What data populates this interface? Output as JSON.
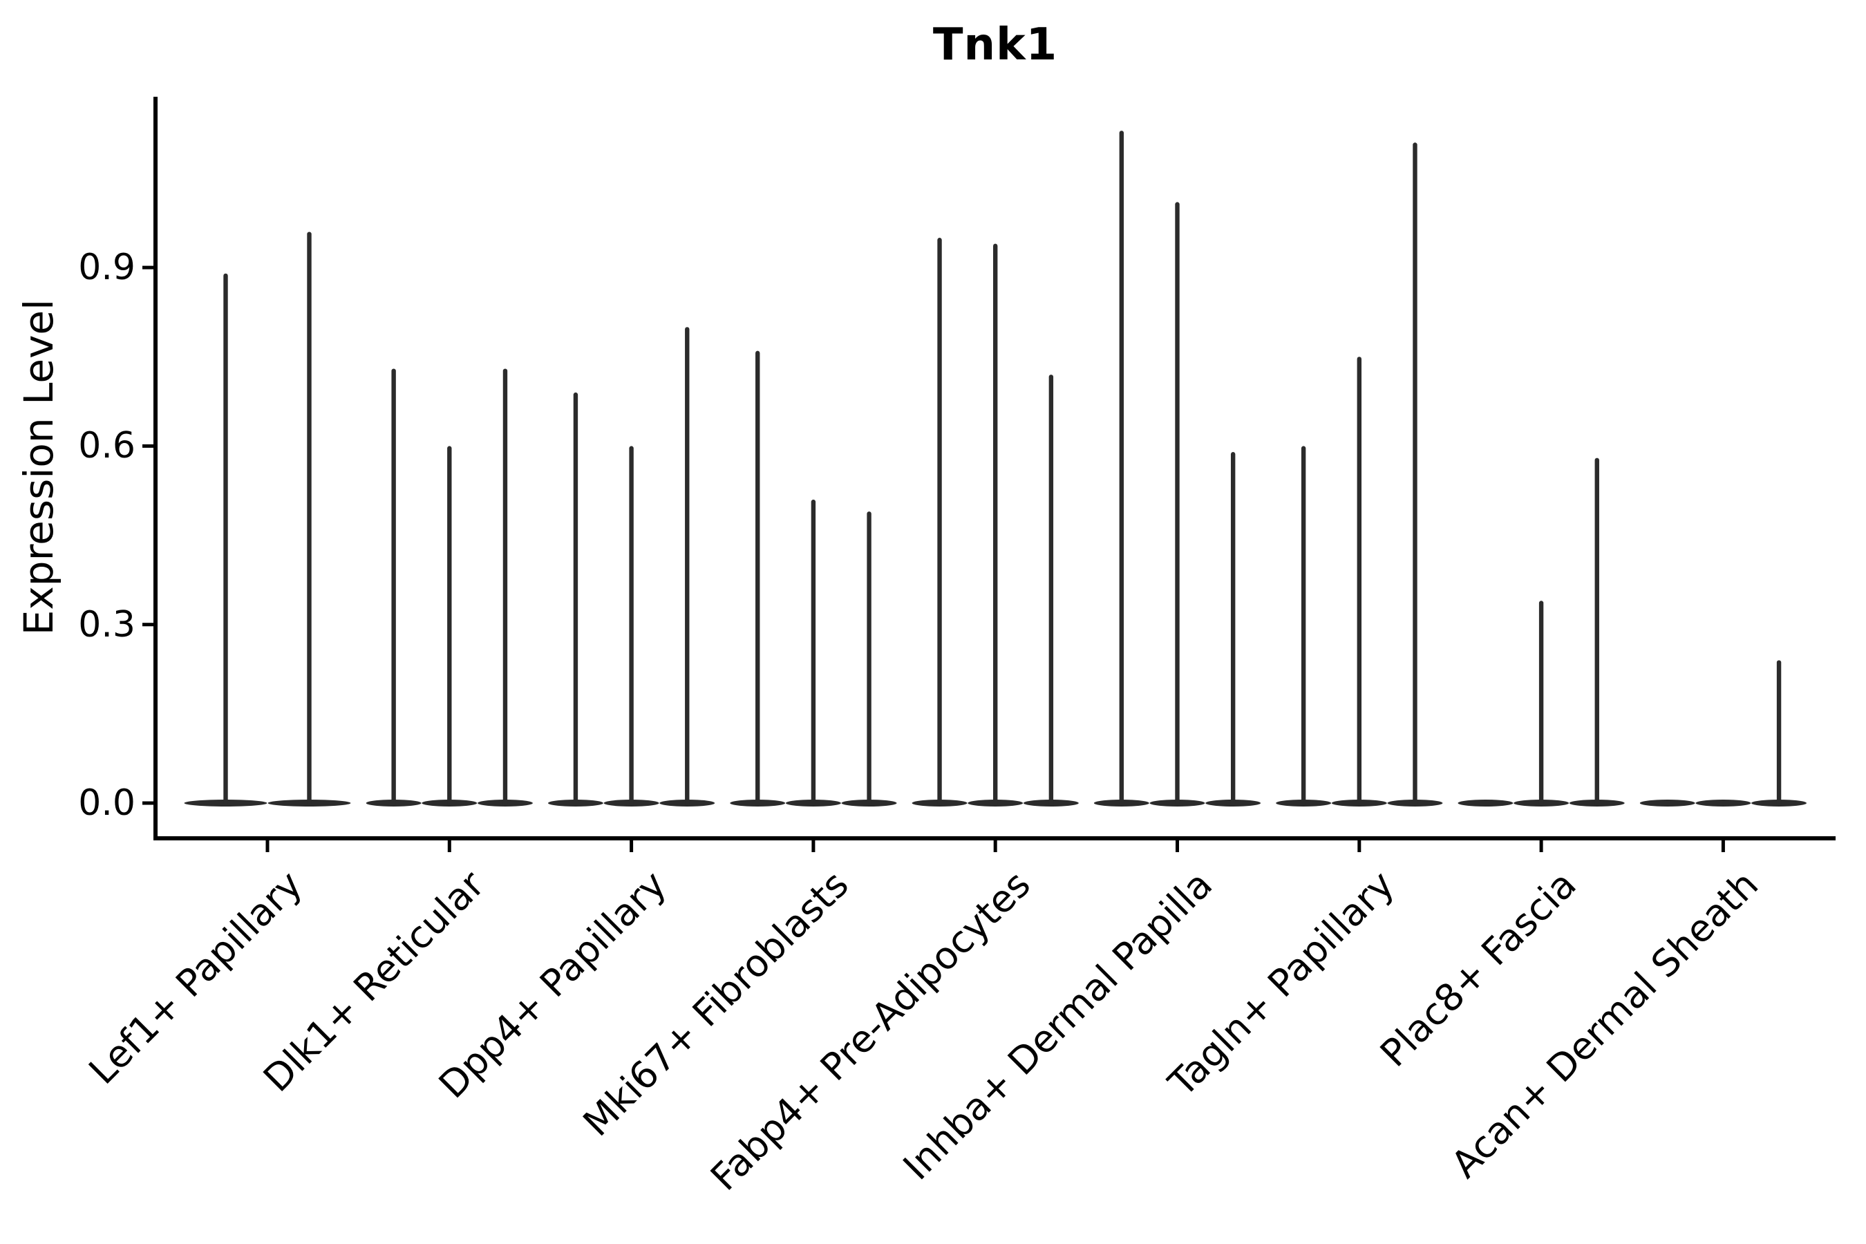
{
  "chart_data": {
    "type": "violin",
    "title": "Tnk1",
    "xlabel": "",
    "ylabel": "Expression Level",
    "y_ticks": [
      "0.0",
      "0.3",
      "0.6",
      "0.9"
    ],
    "y_tick_values": [
      0.0,
      0.3,
      0.6,
      0.9
    ],
    "ylim": [
      -0.06,
      1.2
    ],
    "grid": false,
    "legend": null,
    "note": "Each category shows thin violin shapes collapsed at 0 with narrow spikes reaching the maximum expression value; peaks of 0 indicate a flat violin with no spike.",
    "categories": [
      "Lef1+ Papillary",
      "Dlk1+ Reticular",
      "Dpp4+ Papillary",
      "Mki67+ Fibroblasts",
      "Fabp4+ Pre-Adipocytes",
      "Inhba+ Dermal Papilla",
      "Tagln+ Papillary",
      "Plac8+ Fascia",
      "Acan+ Dermal Sheath"
    ],
    "groups": [
      {
        "label": "Lef1+ Papillary",
        "violin_peaks": [
          0.89,
          0.96
        ]
      },
      {
        "label": "Dlk1+ Reticular",
        "violin_peaks": [
          0.73,
          0.6,
          0.73
        ]
      },
      {
        "label": "Dpp4+ Papillary",
        "violin_peaks": [
          0.69,
          0.6,
          0.8
        ]
      },
      {
        "label": "Mki67+ Fibroblasts",
        "violin_peaks": [
          0.76,
          0.51,
          0.49
        ]
      },
      {
        "label": "Fabp4+ Pre-Adipocytes",
        "violin_peaks": [
          0.95,
          0.94,
          0.72
        ]
      },
      {
        "label": "Inhba+ Dermal Papilla",
        "violin_peaks": [
          1.13,
          1.01,
          0.59
        ]
      },
      {
        "label": "Tagln+ Papillary",
        "violin_peaks": [
          0.6,
          0.75,
          1.11
        ]
      },
      {
        "label": "Plac8+ Fascia",
        "violin_peaks": [
          0.0,
          0.34,
          0.58
        ]
      },
      {
        "label": "Acan+ Dermal Sheath",
        "violin_peaks": [
          0.0,
          0.0,
          0.24
        ]
      }
    ],
    "colors": {
      "violin": "#2b2b2b",
      "axis": "#000000",
      "text": "#000000",
      "background": "#ffffff"
    }
  }
}
